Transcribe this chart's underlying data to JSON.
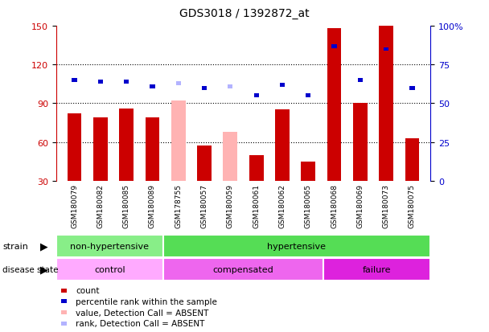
{
  "title": "GDS3018 / 1392872_at",
  "samples": [
    "GSM180079",
    "GSM180082",
    "GSM180085",
    "GSM180089",
    "GSM178755",
    "GSM180057",
    "GSM180059",
    "GSM180061",
    "GSM180062",
    "GSM180065",
    "GSM180068",
    "GSM180069",
    "GSM180073",
    "GSM180075"
  ],
  "count_values": [
    82,
    79,
    86,
    79,
    null,
    57,
    null,
    50,
    85,
    45,
    148,
    90,
    150,
    63
  ],
  "percentile_values": [
    65,
    64,
    64,
    61,
    null,
    60,
    null,
    55,
    62,
    55,
    87,
    65,
    85,
    60
  ],
  "absent_value_values": [
    null,
    null,
    null,
    null,
    92,
    null,
    68,
    null,
    null,
    null,
    null,
    null,
    null,
    null
  ],
  "absent_rank_values": [
    null,
    null,
    null,
    null,
    63,
    null,
    61,
    null,
    null,
    null,
    null,
    null,
    null,
    null
  ],
  "is_absent": [
    false,
    false,
    false,
    false,
    true,
    false,
    true,
    false,
    false,
    false,
    false,
    false,
    false,
    false
  ],
  "ylim_left": [
    30,
    150
  ],
  "ylim_right": [
    0,
    100
  ],
  "yticks_left": [
    30,
    60,
    90,
    120,
    150
  ],
  "yticks_right": [
    0,
    25,
    50,
    75,
    100
  ],
  "bar_color_present": "#cc0000",
  "bar_color_absent": "#ffb3b3",
  "percentile_color_present": "#0000cc",
  "percentile_color_absent": "#b3b3ff",
  "strain_groups": [
    {
      "label": "non-hypertensive",
      "start": 0,
      "end": 4,
      "color": "#88ee88"
    },
    {
      "label": "hypertensive",
      "start": 4,
      "end": 14,
      "color": "#55dd55"
    }
  ],
  "disease_groups": [
    {
      "label": "control",
      "start": 0,
      "end": 4,
      "color": "#ffaaff"
    },
    {
      "label": "compensated",
      "start": 4,
      "end": 10,
      "color": "#ee66ee"
    },
    {
      "label": "failure",
      "start": 10,
      "end": 14,
      "color": "#dd22dd"
    }
  ],
  "legend_items": [
    {
      "label": "count",
      "color": "#cc0000"
    },
    {
      "label": "percentile rank within the sample",
      "color": "#0000cc"
    },
    {
      "label": "value, Detection Call = ABSENT",
      "color": "#ffb3b3"
    },
    {
      "label": "rank, Detection Call = ABSENT",
      "color": "#b3b3ff"
    }
  ],
  "background_color": "#ffffff",
  "plot_bg_color": "#ffffff",
  "left_axis_color": "#cc0000",
  "right_axis_color": "#0000cc",
  "xtick_bg_color": "#cccccc"
}
